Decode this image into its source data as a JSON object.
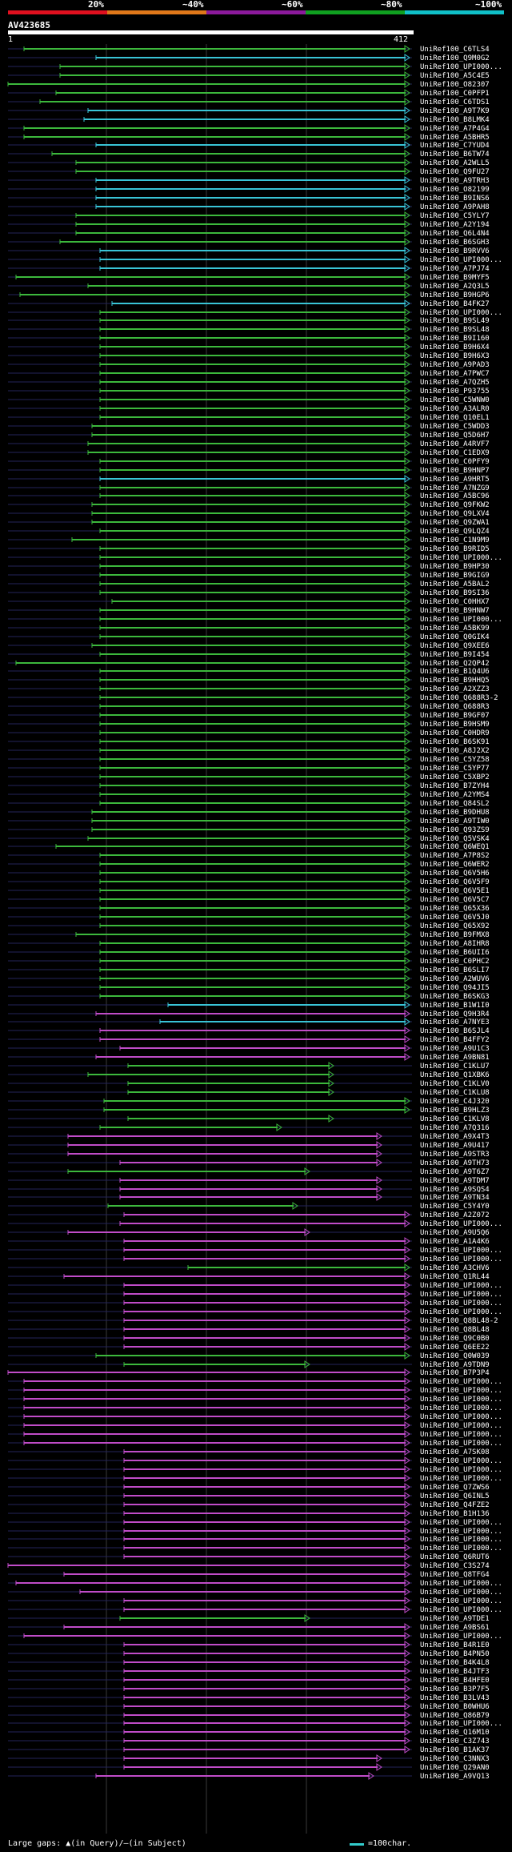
{
  "query": {
    "name": "AV423685",
    "start": "1",
    "end": "412"
  },
  "legend": {
    "labels": [
      "20%",
      "~40%",
      "~60%",
      "~80%",
      "~100%"
    ],
    "colors": [
      "#e0101f",
      "#e07010",
      "#8c1a9c",
      "#10a020",
      "#10c0c8"
    ]
  },
  "footer": {
    "left": "Large gaps: ▲(in Query)/—(in Subject)",
    "right": "=100char."
  },
  "colors": {
    "green": "#3cb83c",
    "cyan": "#39c4d6",
    "magenta": "#c04cc8",
    "bg_line": "#24245a",
    "grid": "#3a3a3a"
  },
  "hits": [
    [
      "UniRef100_C6TLS4",
      "g",
      30,
      510,
      []
    ],
    [
      "UniRef100_Q9M0G2",
      "c",
      120,
      510,
      []
    ],
    [
      "UniRef100_UPI000...",
      "g",
      75,
      510,
      []
    ],
    [
      "UniRef100_A5C4E5",
      "g",
      75,
      510,
      []
    ],
    [
      "UniRef100_O82307",
      "g",
      10,
      510,
      []
    ],
    [
      "UniRef100_C0PFP1",
      "g",
      70,
      510,
      []
    ],
    [
      "UniRef100_C6TDS1",
      "g",
      50,
      510,
      []
    ],
    [
      "UniRef100_A9T7K9",
      "c",
      110,
      510,
      []
    ],
    [
      "UniRef100_B8LMK4",
      "c",
      105,
      510,
      []
    ],
    [
      "UniRef100_A7P4G4",
      "g",
      30,
      510,
      []
    ],
    [
      "UniRef100_A5BHR5",
      "g",
      30,
      510,
      []
    ],
    [
      "UniRef100_C7YUD4",
      "c",
      120,
      510,
      []
    ],
    [
      "UniRef100_B6TW74",
      "g",
      65,
      510,
      []
    ],
    [
      "UniRef100_A2WLL5",
      "g",
      95,
      510,
      []
    ],
    [
      "UniRef100_Q9FU27",
      "g",
      95,
      510,
      []
    ],
    [
      "UniRef100_A9TRH3",
      "c",
      120,
      510,
      []
    ],
    [
      "UniRef100_O82199",
      "c",
      120,
      510,
      []
    ],
    [
      "UniRef100_B9INS6",
      "c",
      120,
      510,
      []
    ],
    [
      "UniRef100_A9PAH8",
      "c",
      120,
      510,
      []
    ],
    [
      "UniRef100_C5YLY7",
      "g",
      95,
      510,
      []
    ],
    [
      "UniRef100_A2Y194",
      "g",
      95,
      510,
      []
    ],
    [
      "UniRef100_Q6L4N4",
      "g",
      95,
      510,
      []
    ],
    [
      "UniRef100_B6SGH3",
      "g",
      75,
      510,
      []
    ],
    [
      "UniRef100_B9RVV6",
      "c",
      125,
      510,
      []
    ],
    [
      "UniRef100_UPI000...",
      "c",
      125,
      510,
      []
    ],
    [
      "UniRef100_A7PJ74",
      "c",
      125,
      510,
      []
    ],
    [
      "UniRef100_B9MYF5",
      "g",
      20,
      510,
      []
    ],
    [
      "UniRef100_A2Q3L5",
      "g",
      110,
      510,
      []
    ],
    [
      "UniRef100_B9HGP6",
      "g",
      25,
      510,
      []
    ],
    [
      "UniRef100_B4FK27",
      "c",
      140,
      510,
      []
    ],
    [
      "UniRef100_UPI000...",
      "g",
      125,
      510,
      []
    ],
    [
      "UniRef100_B9SL49",
      "g",
      125,
      510,
      []
    ],
    [
      "UniRef100_B9SL48",
      "g",
      125,
      510,
      []
    ],
    [
      "UniRef100_B9I160",
      "g",
      125,
      510,
      []
    ],
    [
      "UniRef100_B9H6X4",
      "g",
      125,
      510,
      []
    ],
    [
      "UniRef100_B9H6X3",
      "g",
      125,
      510,
      []
    ],
    [
      "UniRef100_A9PAD3",
      "g",
      125,
      510,
      []
    ],
    [
      "UniRef100_A7PWC7",
      "g",
      125,
      510,
      []
    ],
    [
      "UniRef100_A7QZH5",
      "g",
      125,
      510,
      []
    ],
    [
      "UniRef100_P93755",
      "g",
      125,
      510,
      []
    ],
    [
      "UniRef100_C5WNW0",
      "g",
      125,
      510,
      []
    ],
    [
      "UniRef100_A3ALR0",
      "g",
      125,
      510,
      []
    ],
    [
      "UniRef100_Q10EL1",
      "g",
      125,
      510,
      []
    ],
    [
      "UniRef100_C5WDD3",
      "g",
      115,
      510,
      []
    ],
    [
      "UniRef100_Q5D6H7",
      "g",
      115,
      510,
      []
    ],
    [
      "UniRef100_A4RVF7",
      "g",
      110,
      510,
      []
    ],
    [
      "UniRef100_C1EDX9",
      "g",
      110,
      510,
      []
    ],
    [
      "UniRef100_C0PFY9",
      "g",
      125,
      510,
      []
    ],
    [
      "UniRef100_B9HNP7",
      "g",
      125,
      510,
      []
    ],
    [
      "UniRef100_A9HRT5",
      "c",
      125,
      510,
      []
    ],
    [
      "UniRef100_A7NZG9",
      "g",
      125,
      510,
      []
    ],
    [
      "UniRef100_A5BC96",
      "g",
      125,
      510,
      []
    ],
    [
      "UniRef100_Q9FKW2",
      "g",
      115,
      510,
      []
    ],
    [
      "UniRef100_Q9LXV4",
      "g",
      115,
      510,
      []
    ],
    [
      "UniRef100_Q9ZWA1",
      "g",
      115,
      510,
      []
    ],
    [
      "UniRef100_Q9LQZ4",
      "g",
      125,
      510,
      []
    ],
    [
      "UniRef100_C1N9M9",
      "g",
      90,
      510,
      []
    ],
    [
      "UniRef100_B9RID5",
      "g",
      125,
      510,
      []
    ],
    [
      "UniRef100_UPI000...",
      "g",
      125,
      510,
      []
    ],
    [
      "UniRef100_B9HP30",
      "g",
      125,
      510,
      []
    ],
    [
      "UniRef100_B9GIG9",
      "g",
      125,
      510,
      []
    ],
    [
      "UniRef100_A5BAL2",
      "g",
      125,
      510,
      []
    ],
    [
      "UniRef100_B9SI36",
      "g",
      125,
      510,
      []
    ],
    [
      "UniRef100_C0HHX7",
      "g",
      140,
      510,
      []
    ],
    [
      "UniRef100_B9HNW7",
      "g",
      125,
      510,
      []
    ],
    [
      "UniRef100_UPI000...",
      "g",
      125,
      510,
      []
    ],
    [
      "UniRef100_A5BK99",
      "g",
      125,
      510,
      []
    ],
    [
      "UniRef100_Q0GIK4",
      "g",
      125,
      510,
      []
    ],
    [
      "UniRef100_Q9XEE6",
      "g",
      115,
      510,
      []
    ],
    [
      "UniRef100_B9I454",
      "g",
      125,
      510,
      []
    ],
    [
      "UniRef100_Q2QP42",
      "g",
      20,
      510,
      []
    ],
    [
      "UniRef100_B1Q4U6",
      "g",
      125,
      510,
      []
    ],
    [
      "UniRef100_B9HHQ5",
      "g",
      125,
      510,
      []
    ],
    [
      "UniRef100_A2XZZ3",
      "g",
      125,
      510,
      []
    ],
    [
      "UniRef100_Q688R3-2",
      "g",
      125,
      510,
      []
    ],
    [
      "UniRef100_Q688R3",
      "g",
      125,
      510,
      []
    ],
    [
      "UniRef100_B9GF07",
      "g",
      125,
      510,
      []
    ],
    [
      "UniRef100_B9HSM9",
      "g",
      125,
      510,
      []
    ],
    [
      "UniRef100_C0HDR9",
      "g",
      125,
      510,
      []
    ],
    [
      "UniRef100_B6SK91",
      "g",
      125,
      510,
      []
    ],
    [
      "UniRef100_A8J2X2",
      "g",
      125,
      510,
      []
    ],
    [
      "UniRef100_C5YZ58",
      "g",
      125,
      510,
      []
    ],
    [
      "UniRef100_C5YP77",
      "g",
      125,
      510,
      []
    ],
    [
      "UniRef100_C5XBP2",
      "g",
      125,
      510,
      []
    ],
    [
      "UniRef100_B7ZYH4",
      "g",
      125,
      510,
      []
    ],
    [
      "UniRef100_A2YMS4",
      "g",
      125,
      510,
      []
    ],
    [
      "UniRef100_Q84SL2",
      "g",
      125,
      510,
      []
    ],
    [
      "UniRef100_B9DHU8",
      "g",
      115,
      510,
      []
    ],
    [
      "UniRef100_A9TIW0",
      "g",
      115,
      510,
      []
    ],
    [
      "UniRef100_Q93ZS9",
      "g",
      115,
      510,
      []
    ],
    [
      "UniRef100_Q5VSK4",
      "g",
      110,
      510,
      []
    ],
    [
      "UniRef100_Q6WEQ1",
      "g",
      70,
      510,
      []
    ],
    [
      "UniRef100_A7P8S2",
      "g",
      125,
      510,
      []
    ],
    [
      "UniRef100_Q6WER2",
      "g",
      125,
      510,
      []
    ],
    [
      "UniRef100_Q6V5H6",
      "g",
      125,
      510,
      []
    ],
    [
      "UniRef100_Q6V5F9",
      "g",
      125,
      510,
      []
    ],
    [
      "UniRef100_Q6V5E1",
      "g",
      125,
      510,
      []
    ],
    [
      "UniRef100_Q6V5C7",
      "g",
      125,
      510,
      []
    ],
    [
      "UniRef100_Q65X36",
      "g",
      125,
      510,
      []
    ],
    [
      "UniRef100_Q6V5J0",
      "g",
      125,
      510,
      []
    ],
    [
      "UniRef100_Q65X92",
      "g",
      125,
      510,
      []
    ],
    [
      "UniRef100_B9FMX8",
      "g",
      95,
      510,
      []
    ],
    [
      "UniRef100_A8IHR8",
      "g",
      125,
      510,
      []
    ],
    [
      "UniRef100_B6UII6",
      "g",
      125,
      510,
      []
    ],
    [
      "UniRef100_C0PHC2",
      "g",
      125,
      510,
      []
    ],
    [
      "UniRef100_B6SLI7",
      "g",
      125,
      510,
      []
    ],
    [
      "UniRef100_A2WUV6",
      "g",
      125,
      510,
      []
    ],
    [
      "UniRef100_Q94JI5",
      "g",
      125,
      510,
      []
    ],
    [
      "UniRef100_B6SKG3",
      "g",
      125,
      510,
      []
    ],
    [
      "UniRef100_B1W1I0",
      "c",
      210,
      510,
      []
    ],
    [
      "UniRef100_Q9H3R4",
      "m",
      120,
      510,
      []
    ],
    [
      "UniRef100_A7NYE3",
      "c",
      200,
      510,
      []
    ],
    [
      "UniRef100_B6SJL4",
      "m",
      125,
      510,
      []
    ],
    [
      "UniRef100_B4FFY2",
      "m",
      125,
      510,
      []
    ],
    [
      "UniRef100_A9U1C3",
      "m",
      150,
      510,
      []
    ],
    [
      "UniRef100_A9BN81",
      "m",
      120,
      510,
      []
    ],
    [
      "UniRef100_C1KLU7",
      "g",
      160,
      415,
      []
    ],
    [
      "UniRef100_Q1XBK6",
      "g",
      110,
      415,
      []
    ],
    [
      "UniRef100_C1KLV0",
      "g",
      160,
      415,
      []
    ],
    [
      "UniRef100_C1KLU8",
      "g",
      160,
      415,
      []
    ],
    [
      "UniRef100_C4J320",
      "g",
      130,
      510,
      []
    ],
    [
      "UniRef100_B9HLZ3",
      "g",
      130,
      510,
      []
    ],
    [
      "UniRef100_C1KLV8",
      "g",
      160,
      415,
      []
    ],
    [
      "UniRef100_A7Q316",
      "g",
      125,
      350,
      []
    ],
    [
      "UniRef100_A9X4T3",
      "m",
      85,
      475,
      []
    ],
    [
      "UniRef100_A9U417",
      "m",
      85,
      475,
      []
    ],
    [
      "UniRef100_A9STR3",
      "m",
      85,
      475,
      []
    ],
    [
      "UniRef100_A9TH73",
      "m",
      150,
      475,
      []
    ],
    [
      "UniRef100_A9T6Z7",
      "g",
      85,
      385,
      []
    ],
    [
      "UniRef100_A9TDM7",
      "m",
      150,
      475,
      []
    ],
    [
      "UniRef100_A9SQS4",
      "m",
      150,
      475,
      []
    ],
    [
      "UniRef100_A9TN34",
      "m",
      150,
      475,
      []
    ],
    [
      "UniRef100_C5Y4Y0",
      "g",
      135,
      370,
      []
    ],
    [
      "UniRef100_A2Z072",
      "m",
      155,
      510,
      []
    ],
    [
      "UniRef100_UPI000...",
      "m",
      150,
      510,
      []
    ],
    [
      "UniRef100_A9U5Q6",
      "m",
      85,
      385,
      []
    ],
    [
      "UniRef100_A1A4K6",
      "m",
      155,
      510,
      []
    ],
    [
      "UniRef100_UPI000...",
      "m",
      155,
      510,
      []
    ],
    [
      "UniRef100_UPI000...",
      "m",
      155,
      510,
      []
    ],
    [
      "UniRef100_A3CHV6",
      "g",
      235,
      510,
      []
    ],
    [
      "UniRef100_Q1RL44",
      "m",
      80,
      510,
      []
    ],
    [
      "UniRef100_UPI000...",
      "m",
      155,
      510,
      []
    ],
    [
      "UniRef100_UPI000...",
      "m",
      155,
      510,
      []
    ],
    [
      "UniRef100_UPI000...",
      "m",
      155,
      510,
      []
    ],
    [
      "UniRef100_UPI000...",
      "m",
      155,
      510,
      []
    ],
    [
      "UniRef100_Q8BL48-2",
      "m",
      155,
      510,
      []
    ],
    [
      "UniRef100_Q8BL48",
      "m",
      155,
      510,
      []
    ],
    [
      "UniRef100_Q9C0B0",
      "m",
      155,
      510,
      []
    ],
    [
      "UniRef100_Q6EE22",
      "m",
      155,
      510,
      []
    ],
    [
      "UniRef100_Q0W039",
      "g",
      120,
      510,
      []
    ],
    [
      "UniRef100_A9TDN9",
      "g",
      155,
      385,
      []
    ],
    [
      "UniRef100_B7P3P4",
      "m",
      10,
      510,
      []
    ],
    [
      "UniRef100_UPI000...",
      "m",
      30,
      510,
      []
    ],
    [
      "UniRef100_UPI000...",
      "m",
      30,
      510,
      []
    ],
    [
      "UniRef100_UPI000...",
      "m",
      30,
      510,
      []
    ],
    [
      "UniRef100_UPI000...",
      "m",
      30,
      510,
      []
    ],
    [
      "UniRef100_UPI000...",
      "m",
      30,
      510,
      []
    ],
    [
      "UniRef100_UPI000...",
      "m",
      30,
      510,
      []
    ],
    [
      "UniRef100_UPI000...",
      "m",
      30,
      510,
      []
    ],
    [
      "UniRef100_UPI000...",
      "m",
      30,
      510,
      []
    ],
    [
      "UniRef100_A7SK08",
      "m",
      155,
      510,
      []
    ],
    [
      "UniRef100_UPI000...",
      "m",
      155,
      510,
      []
    ],
    [
      "UniRef100_UPI000...",
      "m",
      155,
      510,
      []
    ],
    [
      "UniRef100_UPI000...",
      "m",
      155,
      510,
      []
    ],
    [
      "UniRef100_Q7ZWS6",
      "m",
      155,
      510,
      []
    ],
    [
      "UniRef100_Q6INL5",
      "m",
      155,
      510,
      []
    ],
    [
      "UniRef100_Q4FZE2",
      "m",
      155,
      510,
      []
    ],
    [
      "UniRef100_B1H136",
      "m",
      155,
      510,
      []
    ],
    [
      "UniRef100_UPI000...",
      "m",
      155,
      510,
      []
    ],
    [
      "UniRef100_UPI000...",
      "m",
      155,
      510,
      []
    ],
    [
      "UniRef100_UPI000...",
      "m",
      155,
      510,
      []
    ],
    [
      "UniRef100_UPI000...",
      "m",
      155,
      510,
      []
    ],
    [
      "UniRef100_Q6RUT6",
      "m",
      155,
      510,
      []
    ],
    [
      "UniRef100_C3S274",
      "m",
      10,
      510,
      []
    ],
    [
      "UniRef100_Q8TFG4",
      "m",
      80,
      510,
      []
    ],
    [
      "UniRef100_UPI000...",
      "m",
      20,
      510,
      []
    ],
    [
      "UniRef100_UPI000...",
      "m",
      100,
      510,
      []
    ],
    [
      "UniRef100_UPI000...",
      "m",
      155,
      510,
      []
    ],
    [
      "UniRef100_UPI000...",
      "m",
      155,
      510,
      []
    ],
    [
      "UniRef100_A9TDE1",
      "g",
      150,
      385,
      []
    ],
    [
      "UniRef100_A9BS61",
      "m",
      80,
      510,
      []
    ],
    [
      "UniRef100_UPI000...",
      "m",
      30,
      510,
      []
    ],
    [
      "UniRef100_B4R1E0",
      "m",
      155,
      510,
      []
    ],
    [
      "UniRef100_B4PN50",
      "m",
      155,
      510,
      []
    ],
    [
      "UniRef100_B4K4L8",
      "m",
      155,
      510,
      []
    ],
    [
      "UniRef100_B4JTF3",
      "m",
      155,
      510,
      []
    ],
    [
      "UniRef100_B4HFE0",
      "m",
      155,
      510,
      []
    ],
    [
      "UniRef100_B3P7F5",
      "m",
      155,
      510,
      []
    ],
    [
      "UniRef100_B3LV43",
      "m",
      155,
      510,
      []
    ],
    [
      "UniRef100_B0WHU6",
      "m",
      155,
      510,
      []
    ],
    [
      "UniRef100_Q86B79",
      "m",
      155,
      510,
      []
    ],
    [
      "UniRef100_UPI000...",
      "m",
      155,
      510,
      []
    ],
    [
      "UniRef100_Q16M10",
      "m",
      155,
      510,
      []
    ],
    [
      "UniRef100_C3Z743",
      "m",
      155,
      510,
      []
    ],
    [
      "UniRef100_B1AK37",
      "m",
      155,
      510,
      []
    ],
    [
      "UniRef100_C3NNX3",
      "m",
      155,
      475,
      []
    ],
    [
      "UniRef100_Q29AN0",
      "m",
      155,
      475,
      []
    ],
    [
      "UniRef100_A9VQ13",
      "m",
      120,
      465,
      []
    ]
  ]
}
